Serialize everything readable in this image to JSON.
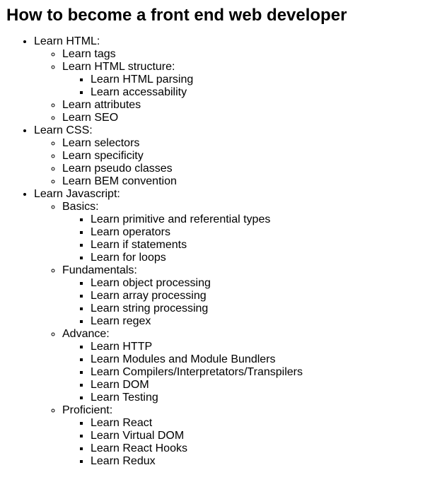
{
  "title": "How to become a front end web developer",
  "sections": [
    {
      "label": "Learn HTML:",
      "items": [
        {
          "label": "Learn tags"
        },
        {
          "label": "Learn HTML structure:",
          "items": [
            "Learn HTML parsing",
            "Learn accessability"
          ]
        },
        {
          "label": "Learn attributes"
        },
        {
          "label": "Learn SEO"
        }
      ]
    },
    {
      "label": "Learn CSS:",
      "items": [
        {
          "label": "Learn selectors"
        },
        {
          "label": "Learn specificity"
        },
        {
          "label": "Learn pseudo classes"
        },
        {
          "label": "Learn BEM convention"
        }
      ]
    },
    {
      "label": "Learn Javascript:",
      "items": [
        {
          "label": "Basics:",
          "items": [
            "Learn primitive and referential types",
            "Learn operators",
            "Learn if statements",
            "Learn for loops"
          ]
        },
        {
          "label": "Fundamentals:",
          "items": [
            "Learn object processing",
            "Learn array processing",
            "Learn string processing",
            "Learn regex"
          ]
        },
        {
          "label": "Advance:",
          "items": [
            "Learn HTTP",
            "Learn Modules and Module Bundlers",
            "Learn Compilers/Interpretators/Transpilers",
            "Learn DOM",
            "Learn Testing"
          ]
        },
        {
          "label": "Proficient:",
          "items": [
            "Learn React",
            "Learn Virtual DOM",
            "Learn React Hooks",
            "Learn Redux"
          ]
        }
      ]
    }
  ]
}
